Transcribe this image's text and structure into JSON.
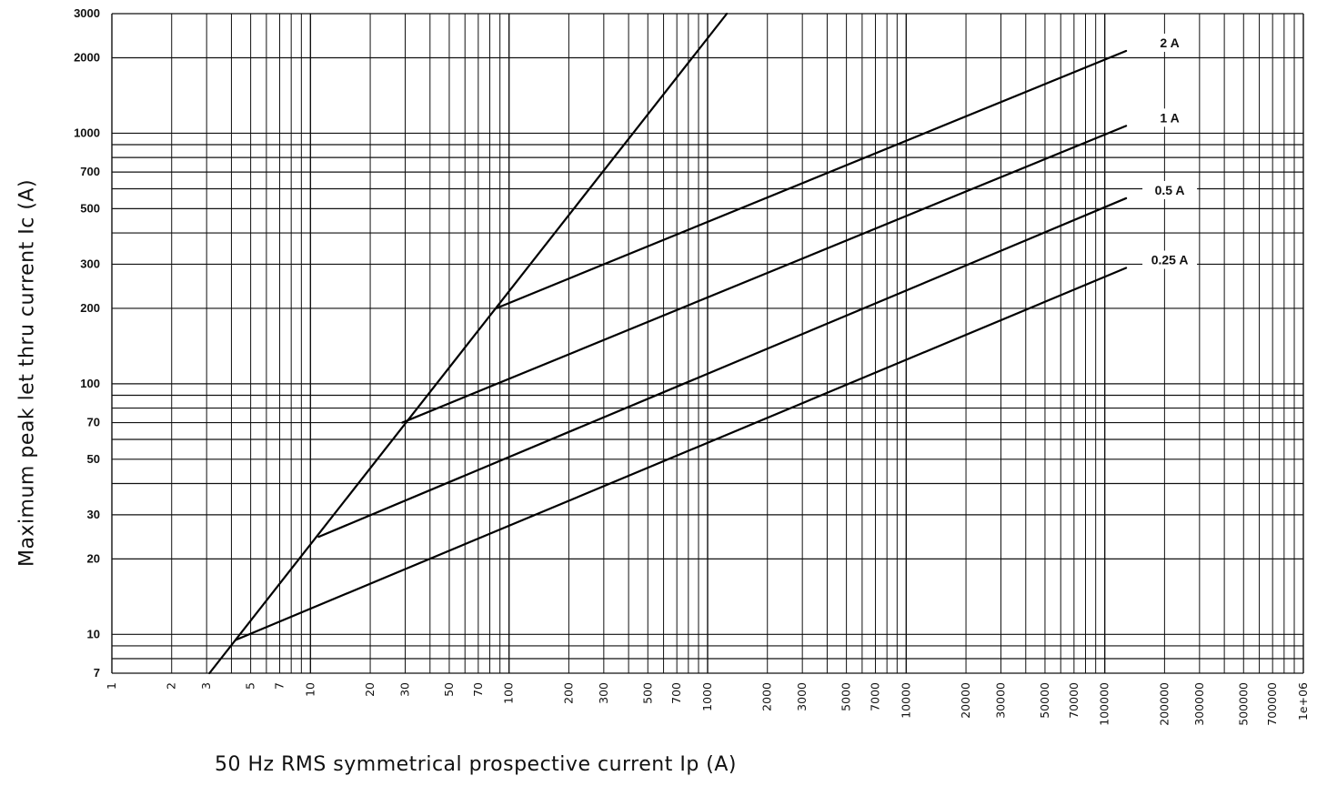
{
  "chart_data": {
    "type": "line",
    "xscale": "log",
    "yscale": "log",
    "xlabel": "50 Hz RMS symmetrical prospective current Ip (A)",
    "ylabel": "Maximum peak let thru current Ic (A)",
    "xlim": [
      1,
      1000000
    ],
    "ylim": [
      7,
      3000
    ],
    "grid": true,
    "x_ticks": [
      {
        "v": 1,
        "t": "1"
      },
      {
        "v": 2,
        "t": "2"
      },
      {
        "v": 3,
        "t": "3"
      },
      {
        "v": 5,
        "t": "5"
      },
      {
        "v": 7,
        "t": "7"
      },
      {
        "v": 10,
        "t": "10"
      },
      {
        "v": 20,
        "t": "20"
      },
      {
        "v": 30,
        "t": "30"
      },
      {
        "v": 50,
        "t": "50"
      },
      {
        "v": 70,
        "t": "70"
      },
      {
        "v": 100,
        "t": "100"
      },
      {
        "v": 200,
        "t": "200"
      },
      {
        "v": 300,
        "t": "300"
      },
      {
        "v": 500,
        "t": "500"
      },
      {
        "v": 700,
        "t": "700"
      },
      {
        "v": 1000,
        "t": "1000"
      },
      {
        "v": 2000,
        "t": "2000"
      },
      {
        "v": 3000,
        "t": "3000"
      },
      {
        "v": 5000,
        "t": "5000"
      },
      {
        "v": 7000,
        "t": "7000"
      },
      {
        "v": 10000,
        "t": "10000"
      },
      {
        "v": 20000,
        "t": "20000"
      },
      {
        "v": 30000,
        "t": "30000"
      },
      {
        "v": 50000,
        "t": "50000"
      },
      {
        "v": 70000,
        "t": "70000"
      },
      {
        "v": 100000,
        "t": "100000"
      },
      {
        "v": 200000,
        "t": "200000"
      },
      {
        "v": 300000,
        "t": "300000"
      },
      {
        "v": 500000,
        "t": "500000"
      },
      {
        "v": 700000,
        "t": "700000"
      },
      {
        "v": 1000000,
        "t": "1e+06"
      }
    ],
    "y_ticks": [
      {
        "v": 7,
        "t": "7"
      },
      {
        "v": 10,
        "t": "10"
      },
      {
        "v": 20,
        "t": "20"
      },
      {
        "v": 30,
        "t": "30"
      },
      {
        "v": 50,
        "t": "50"
      },
      {
        "v": 70,
        "t": "70"
      },
      {
        "v": 100,
        "t": "100"
      },
      {
        "v": 200,
        "t": "200"
      },
      {
        "v": 300,
        "t": "300"
      },
      {
        "v": 500,
        "t": "500"
      },
      {
        "v": 700,
        "t": "700"
      },
      {
        "v": 1000,
        "t": "1000"
      },
      {
        "v": 2000,
        "t": "2000"
      },
      {
        "v": 3000,
        "t": "3000"
      }
    ],
    "diagonal_line": {
      "x": [
        3.1,
        1250
      ],
      "y": [
        7,
        3000
      ]
    },
    "series": [
      {
        "name": "2 A",
        "x": [
          86,
          128000
        ],
        "y": [
          200,
          2130
        ]
      },
      {
        "name": "1 A",
        "x": [
          29,
          128000
        ],
        "y": [
          70,
          1070
        ]
      },
      {
        "name": "0.5 A",
        "x": [
          11,
          128000
        ],
        "y": [
          24.5,
          550
        ]
      },
      {
        "name": "0.25 A",
        "x": [
          4.2,
          128000
        ],
        "y": [
          9.5,
          290
        ]
      }
    ]
  }
}
